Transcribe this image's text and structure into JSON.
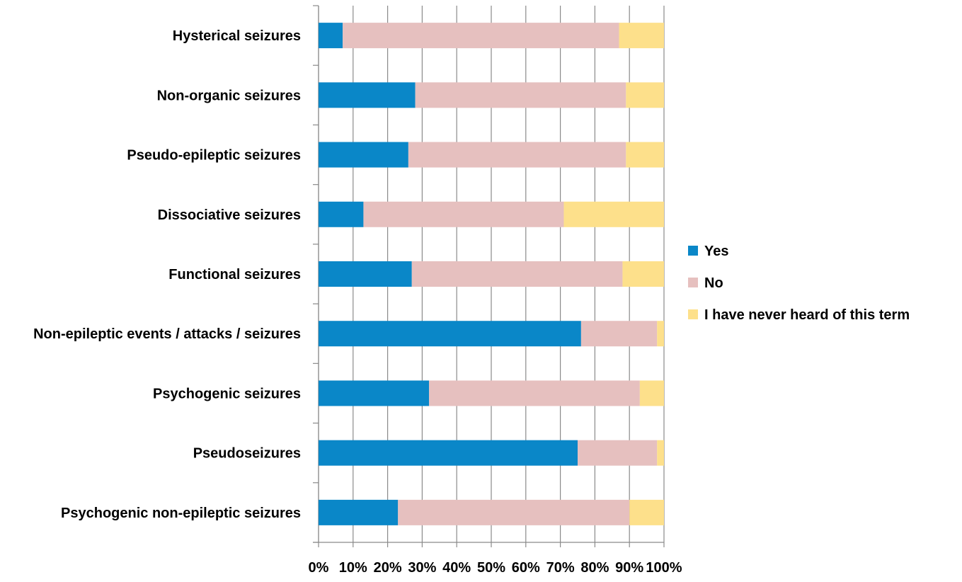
{
  "chart_data": {
    "type": "bar",
    "orientation": "horizontal",
    "stacked": "percent",
    "title": "",
    "xlabel": "",
    "ylabel": "",
    "xlim": [
      0,
      100
    ],
    "x_ticks": [
      "0%",
      "10%",
      "20%",
      "30%",
      "40%",
      "50%",
      "60%",
      "70%",
      "80%",
      "90%",
      "100%"
    ],
    "grid": "vertical",
    "legend_position": "right",
    "categories": [
      "Hysterical seizures",
      "Non-organic seizures",
      "Pseudo-epileptic seizures",
      "Dissociative seizures",
      "Functional seizures",
      "Non-epileptic events / attacks / seizures",
      "Psychogenic seizures",
      "Pseudoseizures",
      "Psychogenic non-epileptic seizures"
    ],
    "series": [
      {
        "name": "Yes",
        "color": "#0a87c8",
        "values": [
          7,
          28,
          26,
          13,
          27,
          76,
          32,
          75,
          23
        ]
      },
      {
        "name": "No",
        "color": "#e6c0bf",
        "values": [
          80,
          61,
          63,
          58,
          61,
          22,
          61,
          23,
          67
        ]
      },
      {
        "name": "I have never heard of this term",
        "color": "#fde08b",
        "values": [
          13,
          11,
          11,
          29,
          12,
          2,
          7,
          2,
          10
        ]
      }
    ]
  }
}
